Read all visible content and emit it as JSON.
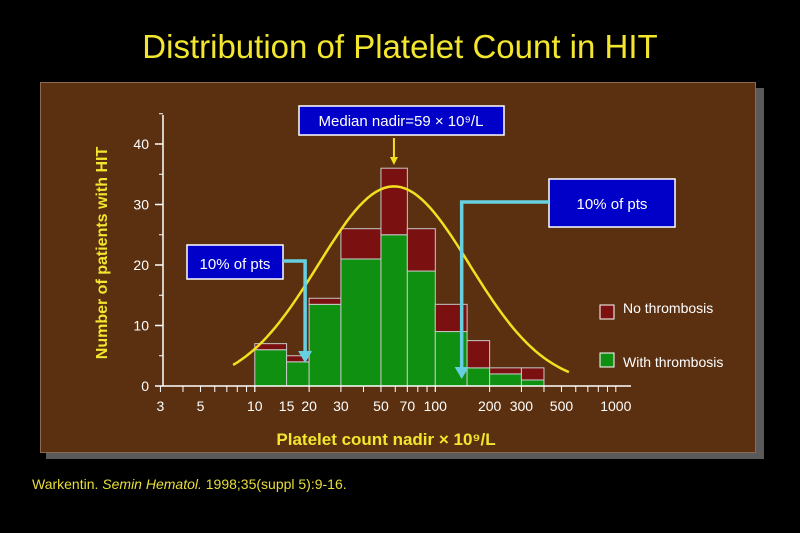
{
  "slide": {
    "title": "Distribution of Platelet Count in HIT",
    "citation": {
      "author": "Warkentin.",
      "journal": "Semin Hematol.",
      "details": "1998;35(suppl 5):9-16."
    }
  },
  "colors": {
    "background": "#000000",
    "panel": "#5b3010",
    "title_text": "#f2e62e",
    "no_thrombosis": "#7a1010",
    "with_thrombosis": "#109010",
    "curve": "#f0e020",
    "arrow": "#66d0e0",
    "callout_fill": "#0000c8"
  },
  "chart_data": {
    "type": "bar",
    "stacked": true,
    "x_scale": "log",
    "xlabel": "Platelet count nadir × 10⁹/L",
    "ylabel": "Number of patients with HIT",
    "ylim": [
      0,
      45
    ],
    "y_ticks": [
      0,
      10,
      20,
      30,
      40
    ],
    "x_ticks": [
      3,
      5,
      10,
      15,
      20,
      30,
      50,
      70,
      100,
      200,
      300,
      500,
      1000
    ],
    "x_tick_labels": [
      "3",
      "5",
      "10",
      "15",
      "20",
      "30",
      "50",
      "70",
      "100",
      "200",
      "300",
      "500",
      "1000"
    ],
    "bins": [
      {
        "lo": 10,
        "hi": 15
      },
      {
        "lo": 15,
        "hi": 20
      },
      {
        "lo": 20,
        "hi": 30
      },
      {
        "lo": 30,
        "hi": 50
      },
      {
        "lo": 50,
        "hi": 70
      },
      {
        "lo": 70,
        "hi": 100
      },
      {
        "lo": 100,
        "hi": 150
      },
      {
        "lo": 150,
        "hi": 200
      },
      {
        "lo": 200,
        "hi": 300
      },
      {
        "lo": 300,
        "hi": 400
      }
    ],
    "series": [
      {
        "name": "With thrombosis",
        "color": "#109010",
        "values": [
          6,
          4,
          13.5,
          21,
          25,
          19,
          9,
          3,
          2,
          1
        ]
      },
      {
        "name": "No thrombosis",
        "color": "#7a1010",
        "values": [
          1,
          1,
          1,
          5,
          11,
          7,
          4.5,
          4.5,
          1,
          2
        ]
      }
    ],
    "curve": {
      "name": "",
      "color": "#f0e020",
      "peak_x": 59,
      "peak_y": 33
    },
    "legend_position": "right",
    "annotations": [
      {
        "text": "Median nadir=59 × 10⁹/L",
        "x": 59
      },
      {
        "text": "10% of pts",
        "x": 19
      },
      {
        "text": "10% of pts",
        "x": 140
      }
    ]
  }
}
